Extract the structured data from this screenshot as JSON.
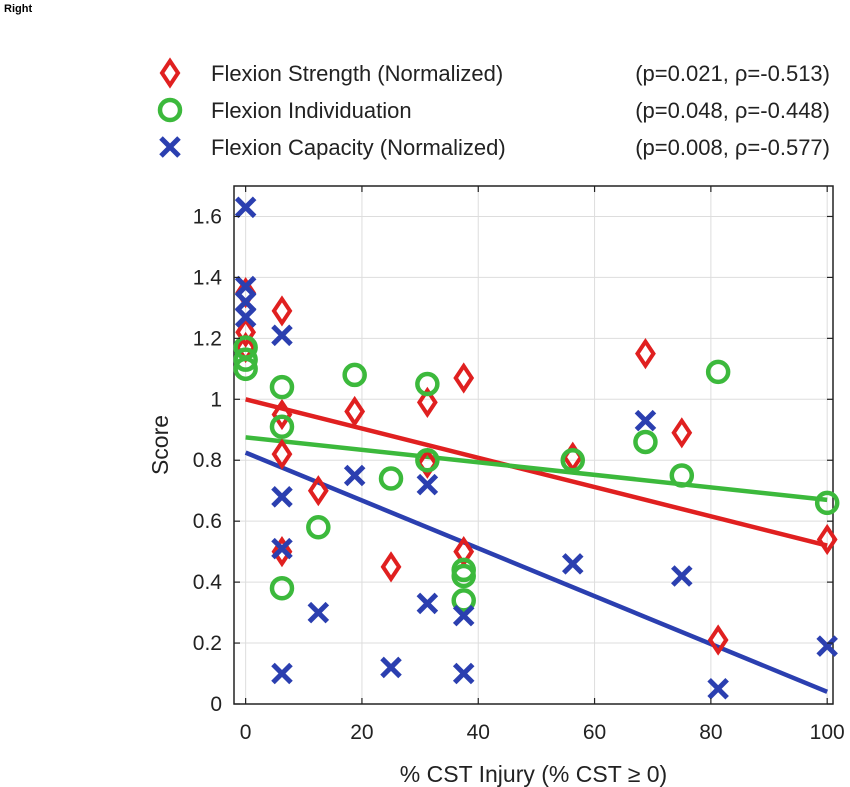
{
  "corner_label": "Right",
  "chart_data": {
    "type": "scatter",
    "xlabel_prefix": "% CST Injury (% CST ",
    "xlabel_symbol": "≥",
    "xlabel_suffix": " 0)",
    "ylabel": "Score",
    "xlim": [
      -2,
      101
    ],
    "ylim": [
      0,
      1.7
    ],
    "xticks": [
      0,
      20,
      40,
      60,
      80,
      100
    ],
    "yticks": [
      0,
      0.2,
      0.4,
      0.6,
      0.8,
      1,
      1.2,
      1.4,
      1.6
    ],
    "ytick_labels": [
      "0",
      "0.2",
      "0.4",
      "0.6",
      "0.8",
      "1",
      "1.2",
      "1.4",
      "1.6"
    ],
    "grid": true,
    "legend_position": "top, above axes",
    "series": [
      {
        "name": "Flexion Strength (Normalized)",
        "stats": "(p=0.021, ρ=-0.513)",
        "marker": "diamond-icon",
        "color": "#e02020",
        "points": [
          [
            0,
            1.35
          ],
          [
            0,
            1.22
          ],
          [
            0,
            1.17
          ],
          [
            6.25,
            1.29
          ],
          [
            6.25,
            0.95
          ],
          [
            6.25,
            0.82
          ],
          [
            6.25,
            0.5
          ],
          [
            12.5,
            0.7
          ],
          [
            18.75,
            0.96
          ],
          [
            25,
            0.45
          ],
          [
            31.25,
            0.99
          ],
          [
            31.25,
            0.79
          ],
          [
            37.5,
            1.07
          ],
          [
            37.5,
            0.5
          ],
          [
            56.25,
            0.81
          ],
          [
            68.75,
            1.15
          ],
          [
            75,
            0.89
          ],
          [
            81.25,
            0.21
          ],
          [
            100,
            0.54
          ]
        ],
        "fit": [
          [
            0,
            1.0
          ],
          [
            100,
            0.52
          ]
        ]
      },
      {
        "name": "Flexion Individuation",
        "stats": "(p=0.048, ρ=-0.448)",
        "marker": "circle-icon",
        "color": "#3cb93c",
        "points": [
          [
            0,
            1.17
          ],
          [
            0,
            1.13
          ],
          [
            0,
            1.1
          ],
          [
            6.25,
            1.04
          ],
          [
            6.25,
            0.91
          ],
          [
            6.25,
            0.38
          ],
          [
            12.5,
            0.58
          ],
          [
            18.75,
            1.08
          ],
          [
            25,
            0.74
          ],
          [
            31.25,
            1.05
          ],
          [
            31.25,
            0.8
          ],
          [
            37.5,
            0.44
          ],
          [
            37.5,
            0.42
          ],
          [
            37.5,
            0.34
          ],
          [
            56.25,
            0.8
          ],
          [
            68.75,
            0.86
          ],
          [
            75,
            0.75
          ],
          [
            81.25,
            1.09
          ],
          [
            100,
            0.66
          ]
        ],
        "fit": [
          [
            0,
            0.875
          ],
          [
            100,
            0.67
          ]
        ]
      },
      {
        "name": "Flexion Capacity (Normalized)",
        "stats": "(p=0.008, ρ=-0.577)",
        "marker": "cross-icon",
        "color": "#2b3fb0",
        "points": [
          [
            0,
            1.63
          ],
          [
            0,
            1.37
          ],
          [
            0,
            1.32
          ],
          [
            0,
            1.27
          ],
          [
            6.25,
            1.21
          ],
          [
            6.25,
            0.68
          ],
          [
            6.25,
            0.51
          ],
          [
            6.25,
            0.1
          ],
          [
            12.5,
            0.3
          ],
          [
            18.75,
            0.75
          ],
          [
            25,
            0.12
          ],
          [
            31.25,
            0.72
          ],
          [
            31.25,
            0.33
          ],
          [
            37.5,
            0.29
          ],
          [
            37.5,
            0.1
          ],
          [
            56.25,
            0.46
          ],
          [
            68.75,
            0.93
          ],
          [
            75,
            0.42
          ],
          [
            81.25,
            0.05
          ],
          [
            100,
            0.19
          ]
        ],
        "fit": [
          [
            0,
            0.825
          ],
          [
            100,
            0.04
          ]
        ]
      }
    ]
  }
}
